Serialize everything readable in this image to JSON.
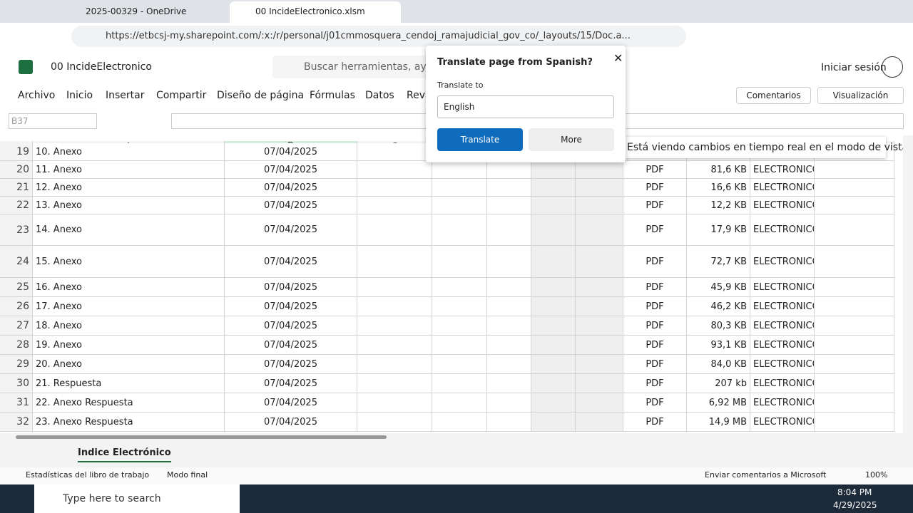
{
  "browser": {
    "tabs": [
      "2025-00329 - OneDrive",
      "00 IncideElectronico.xlsm"
    ],
    "url": "https://etbcsj-my.sharepoint.com/:x:/r/personal/j01cmmosquera_cendoj_ramajudicial_gov_co/_layouts/15/Doc.a..."
  },
  "excel": {
    "file_name": "00 IncideElectronico",
    "search": "Buscar herramientas, ayuda",
    "sign_in": "Iniciar sesión",
    "menu": [
      "Archivo",
      "Inicio",
      "Insertar",
      "Compartir",
      "Diseño de página",
      "Fórmulas",
      "Datos",
      "Revi"
    ],
    "comments": "Comentarios",
    "view": "Visualización",
    "cell_ref": "B37",
    "columns": [
      "A",
      "B",
      "C"
    ],
    "rows": [
      [
        "19",
        "10. Anexo",
        "07/04/2025",
        "",
        "",
        "",
        ""
      ],
      [
        "20",
        "11. Anexo",
        "07/04/2025",
        "PDF",
        "81,6 KB",
        "ELECTRONICO"
      ],
      [
        "21",
        "12. Anexo",
        "07/04/2025",
        "PDF",
        "16,6 KB",
        "ELECTRONICO"
      ],
      [
        "22",
        "13. Anexo",
        "07/04/2025",
        "PDF",
        "12,2 KB",
        "ELECTRONICO"
      ],
      [
        "23",
        "14. Anexo",
        "07/04/2025",
        "PDF",
        "17,9 KB",
        "ELECTRONICO"
      ],
      [
        "24",
        "15. Anexo",
        "07/04/2025",
        "PDF",
        "72,7 KB",
        "ELECTRONICO"
      ],
      [
        "25",
        "16. Anexo",
        "07/04/2025",
        "PDF",
        "45,9 KB",
        "ELECTRONICO"
      ],
      [
        "26",
        "17. Anexo",
        "07/04/2025",
        "PDF",
        "46,2 KB",
        "ELECTRONICO"
      ],
      [
        "27",
        "18. Anexo",
        "07/04/2025",
        "PDF",
        "80,3 KB",
        "ELECTRONICO"
      ],
      [
        "28",
        "19. Anexo",
        "07/04/2025",
        "PDF",
        "93,1 KB",
        "ELECTRONICO"
      ],
      [
        "29",
        "20. Anexo",
        "07/04/2025",
        "PDF",
        "84,0 KB",
        "ELECTRONICO"
      ],
      [
        "30",
        "21. Respuesta",
        "07/04/2025",
        "PDF",
        "207 kb",
        "ELECTRONICO"
      ],
      [
        "31",
        "22. Anexo Respuesta",
        "07/04/2025",
        "PDF",
        "6,92 MB",
        "ELECTRONICO"
      ],
      [
        "32",
        "23. Anexo Respuesta",
        "07/04/2025",
        "PDF",
        "14,9 MB",
        "ELECTRONICO"
      ]
    ],
    "banner": "Está viendo cambios en tiempo real en el modo de vista.",
    "sheet_tab": "Indice Electrónico",
    "status": [
      "Estadísticas del libro de trabajo",
      "Modo final"
    ],
    "feedback": "Enviar comentarios a Microsoft",
    "zoom": "100%"
  },
  "translate": {
    "title": "Translate page from Spanish?",
    "label": "Translate to",
    "language": "English",
    "translate_button": "Translate",
    "more_button": "More"
  },
  "taskbar": {
    "search": "Type here to search",
    "time": "8:04 PM",
    "date": "4/29/2025"
  }
}
